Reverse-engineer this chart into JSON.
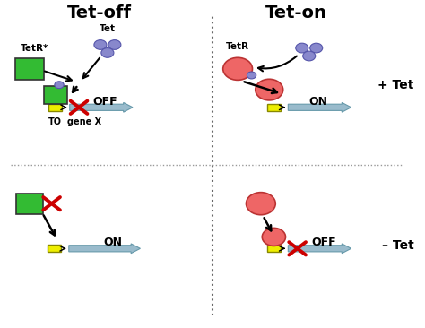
{
  "title_left": "Tet-off",
  "title_right": "Tet-on",
  "label_plus_tet": "+ Tet",
  "label_minus_tet": "– Tet",
  "bg_color": "#ffffff",
  "dot_color": "#8888cc",
  "dot_edge_color": "#5555aa",
  "cell_green_color": "#33bb33",
  "cell_green_edge": "#226622",
  "cell_red_color": "#ee6666",
  "cell_red_edge": "#bb3333",
  "gene_arrow_color": "#99bbcc",
  "promoter_color": "#eeee00",
  "cross_color": "#cc0000",
  "label_off": "OFF",
  "label_on": "ON",
  "label_tetr_star": "TetR*",
  "label_tetr": "TetR",
  "label_tet": "Tet",
  "label_to": "TO",
  "label_gene_x": "gene X"
}
